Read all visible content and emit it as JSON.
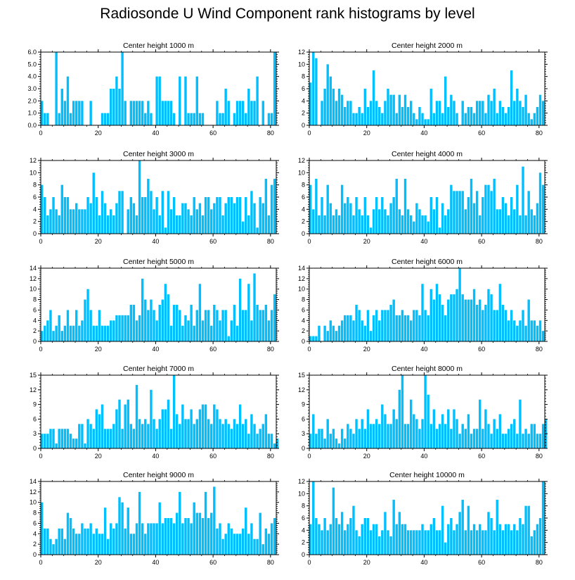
{
  "figure": {
    "title": "Radiosonde U Wind Component rank histograms by level",
    "bar_color": "#00bfff",
    "axis_color": "#000000"
  },
  "chart_data": [
    {
      "type": "bar",
      "title": "Center height 1000 m",
      "x_ticks": [
        0,
        20,
        40,
        60,
        80
      ],
      "y_ticks": [
        "0.0",
        "1.0",
        "2.0",
        "3.0",
        "4.0",
        "5.0",
        "6.0"
      ],
      "ylim": [
        0,
        6
      ],
      "values": [
        2,
        1,
        1,
        0,
        0,
        6,
        1,
        3,
        2,
        4,
        1,
        2,
        2,
        2,
        2,
        0,
        0,
        2,
        0,
        0,
        0,
        1,
        1,
        1,
        3,
        3,
        4,
        3,
        6,
        2,
        0,
        2,
        2,
        2,
        2,
        2,
        1,
        2,
        1,
        0,
        4,
        4,
        2,
        2,
        2,
        2,
        1,
        0,
        4,
        0,
        4,
        1,
        1,
        1,
        4,
        1,
        1,
        0,
        0,
        0,
        0,
        2,
        1,
        1,
        3,
        2,
        0,
        1,
        2,
        2,
        2,
        1,
        3,
        2,
        2,
        4,
        0,
        2,
        0,
        1,
        1,
        6
      ]
    },
    {
      "type": "bar",
      "title": "Center height 2000 m",
      "x_ticks": [
        0,
        20,
        40,
        60,
        80
      ],
      "y_ticks": [
        "0",
        "2",
        "4",
        "6",
        "8",
        "10",
        "12"
      ],
      "ylim": [
        0,
        12
      ],
      "values": [
        7,
        12,
        11,
        0,
        4,
        6,
        10,
        8,
        6,
        4,
        6,
        5,
        3,
        4,
        4,
        2,
        2,
        3,
        2,
        6,
        3,
        4,
        9,
        4,
        3,
        2,
        4,
        6,
        5,
        5,
        2,
        5,
        3,
        5,
        3,
        4,
        2,
        1,
        3,
        2,
        1,
        1,
        6,
        2,
        4,
        4,
        2,
        8,
        3,
        5,
        4,
        2,
        0,
        4,
        2,
        3,
        3,
        2,
        4,
        4,
        4,
        2,
        5,
        4,
        6,
        2,
        4,
        3,
        2,
        3,
        9,
        4,
        6,
        4,
        3,
        5,
        2,
        1,
        2,
        3,
        5,
        4
      ]
    },
    {
      "type": "bar",
      "title": "Center height 3000 m",
      "x_ticks": [
        0,
        20,
        40,
        60,
        80
      ],
      "y_ticks": [
        "0",
        "2",
        "4",
        "6",
        "8",
        "10",
        "12"
      ],
      "ylim": [
        0,
        12
      ],
      "values": [
        8,
        6,
        3,
        4,
        6,
        4,
        3,
        8,
        6,
        6,
        4,
        4,
        5,
        4,
        4,
        4,
        6,
        5,
        10,
        6,
        3,
        7,
        5,
        3,
        4,
        3,
        5,
        7,
        7,
        0,
        4,
        6,
        5,
        3,
        12,
        6,
        6,
        9,
        7,
        4,
        6,
        3,
        7,
        1,
        7,
        4,
        6,
        3,
        3,
        5,
        5,
        4,
        3,
        6,
        4,
        5,
        3,
        6,
        6,
        4,
        5,
        6,
        6,
        3,
        5,
        6,
        6,
        5,
        6,
        6,
        2,
        6,
        3,
        7,
        5,
        1,
        6,
        5,
        9,
        3,
        8,
        9
      ]
    },
    {
      "type": "bar",
      "title": "Center height 4000 m",
      "x_ticks": [
        0,
        20,
        40,
        60,
        80
      ],
      "y_ticks": [
        "0",
        "2",
        "4",
        "6",
        "8",
        "10",
        "12"
      ],
      "ylim": [
        0,
        12
      ],
      "values": [
        8,
        4,
        9,
        3,
        6,
        3,
        8,
        5,
        3,
        4,
        3,
        8,
        5,
        6,
        5,
        3,
        6,
        4,
        3,
        6,
        3,
        1,
        4,
        6,
        4,
        6,
        4,
        3,
        5,
        6,
        9,
        4,
        3,
        9,
        4,
        3,
        2,
        5,
        4,
        3,
        3,
        2,
        6,
        4,
        6,
        1,
        5,
        3,
        4,
        8,
        7,
        7,
        7,
        7,
        4,
        6,
        9,
        5,
        7,
        3,
        6,
        8,
        8,
        7,
        9,
        4,
        4,
        6,
        5,
        3,
        6,
        4,
        8,
        3,
        11,
        3,
        7,
        4,
        3,
        5,
        10,
        8
      ]
    },
    {
      "type": "bar",
      "title": "Center height 5000 m",
      "x_ticks": [
        0,
        20,
        40,
        60,
        80
      ],
      "y_ticks": [
        "0",
        "2",
        "4",
        "6",
        "8",
        "10",
        "12",
        "14"
      ],
      "ylim": [
        0,
        14
      ],
      "values": [
        2,
        3,
        4,
        6,
        2,
        3,
        5,
        2,
        3,
        6,
        3,
        3,
        6,
        3,
        4,
        8,
        10,
        6,
        3,
        3,
        6,
        3,
        3,
        3,
        4,
        4,
        5,
        5,
        5,
        5,
        5,
        7,
        7,
        4,
        5,
        12,
        8,
        6,
        8,
        6,
        4,
        7,
        8,
        11,
        9,
        3,
        7,
        7,
        6,
        3,
        5,
        4,
        7,
        3,
        6,
        11,
        4,
        6,
        6,
        3,
        7,
        6,
        4,
        6,
        6,
        1,
        4,
        7,
        3,
        12,
        6,
        6,
        11,
        4,
        13,
        7,
        6,
        6,
        7,
        4,
        6,
        9
      ]
    },
    {
      "type": "bar",
      "title": "Center height 6000 m",
      "x_ticks": [
        0,
        20,
        40,
        60,
        80
      ],
      "y_ticks": [
        "0",
        "2",
        "4",
        "6",
        "8",
        "10",
        "12",
        "14"
      ],
      "ylim": [
        0,
        14
      ],
      "values": [
        1,
        1,
        1,
        3,
        0,
        3,
        2,
        4,
        3,
        2,
        3,
        4,
        5,
        5,
        5,
        4,
        7,
        6,
        4,
        3,
        6,
        2,
        5,
        6,
        4,
        6,
        6,
        6,
        7,
        8,
        5,
        5,
        6,
        5,
        5,
        4,
        6,
        6,
        5,
        11,
        6,
        5,
        10,
        8,
        11,
        9,
        7,
        5,
        8,
        9,
        9,
        10,
        14,
        9,
        8,
        8,
        8,
        10,
        7,
        8,
        6,
        7,
        10,
        9,
        6,
        6,
        11,
        7,
        6,
        4,
        6,
        4,
        3,
        4,
        6,
        3,
        8,
        4,
        4,
        3,
        4,
        2
      ]
    },
    {
      "type": "bar",
      "title": "Center height 7000 m",
      "x_ticks": [
        0,
        20,
        40,
        60,
        80
      ],
      "y_ticks": [
        "0",
        "3",
        "6",
        "9",
        "12",
        "15"
      ],
      "ylim": [
        0,
        15
      ],
      "values": [
        3,
        3,
        3,
        4,
        4,
        1,
        4,
        4,
        4,
        4,
        3,
        2,
        2,
        5,
        5,
        1,
        6,
        5,
        4,
        8,
        7,
        9,
        4,
        4,
        4,
        5,
        8,
        10,
        4,
        9,
        10,
        5,
        4,
        13,
        6,
        5,
        6,
        5,
        12,
        6,
        4,
        6,
        8,
        8,
        10,
        4,
        15,
        7,
        5,
        9,
        6,
        6,
        8,
        5,
        6,
        8,
        9,
        9,
        6,
        5,
        9,
        8,
        6,
        5,
        6,
        5,
        4,
        6,
        5,
        9,
        5,
        6,
        3,
        7,
        5,
        3,
        4,
        5,
        7,
        3,
        3,
        1,
        2
      ]
    },
    {
      "type": "bar",
      "title": "Center height 8000 m",
      "x_ticks": [
        0,
        20,
        40,
        60,
        80
      ],
      "y_ticks": [
        "0",
        "3",
        "6",
        "9",
        "12",
        "15"
      ],
      "ylim": [
        0,
        15
      ],
      "values": [
        3,
        7,
        3,
        4,
        4,
        2,
        6,
        3,
        4,
        2,
        1,
        4,
        2,
        5,
        4,
        3,
        6,
        4,
        6,
        4,
        8,
        5,
        5,
        6,
        5,
        9,
        7,
        5,
        5,
        8,
        6,
        12,
        15,
        5,
        5,
        10,
        7,
        6,
        4,
        6,
        15,
        11,
        5,
        8,
        4,
        5,
        7,
        5,
        8,
        4,
        8,
        6,
        3,
        5,
        4,
        7,
        3,
        4,
        4,
        10,
        4,
        8,
        5,
        3,
        6,
        4,
        7,
        3,
        3,
        4,
        5,
        6,
        3,
        10,
        3,
        4,
        3,
        5,
        5,
        3,
        3,
        5,
        6
      ]
    },
    {
      "type": "bar",
      "title": "Center height 9000 m",
      "x_ticks": [
        0,
        20,
        40,
        60,
        80
      ],
      "y_ticks": [
        "0",
        "2",
        "4",
        "6",
        "8",
        "10",
        "12",
        "14"
      ],
      "ylim": [
        0,
        14
      ],
      "values": [
        10,
        5,
        5,
        3,
        2,
        3,
        5,
        5,
        3,
        8,
        7,
        5,
        4,
        4,
        6,
        5,
        5,
        6,
        4,
        5,
        4,
        4,
        9,
        3,
        6,
        5,
        6,
        11,
        10,
        5,
        9,
        4,
        4,
        6,
        12,
        6,
        4,
        6,
        6,
        6,
        6,
        10,
        6,
        7,
        7,
        7,
        6,
        8,
        12,
        6,
        7,
        7,
        6,
        10,
        8,
        8,
        7,
        12,
        7,
        8,
        13,
        5,
        6,
        3,
        4,
        6,
        5,
        4,
        4,
        4,
        5,
        9,
        4,
        6,
        3,
        3,
        8,
        2,
        5,
        4,
        6,
        7
      ]
    },
    {
      "type": "bar",
      "title": "Center height 10000 m",
      "x_ticks": [
        0,
        20,
        40,
        60,
        80
      ],
      "y_ticks": [
        "0",
        "2",
        "4",
        "6",
        "8",
        "10",
        "12"
      ],
      "ylim": [
        0,
        12
      ],
      "values": [
        5,
        12,
        6,
        5,
        4,
        6,
        4,
        5,
        11,
        6,
        5,
        7,
        4,
        5,
        6,
        8,
        4,
        3,
        5,
        6,
        6,
        4,
        5,
        5,
        3,
        4,
        7,
        4,
        3,
        9,
        5,
        7,
        5,
        5,
        4,
        4,
        4,
        4,
        4,
        5,
        4,
        4,
        5,
        6,
        4,
        4,
        8,
        2,
        5,
        6,
        4,
        5,
        7,
        9,
        4,
        8,
        4,
        5,
        4,
        5,
        4,
        4,
        7,
        6,
        4,
        9,
        5,
        4,
        5,
        5,
        4,
        5,
        4,
        6,
        5,
        8,
        8,
        3,
        4,
        5,
        6,
        12
      ]
    }
  ]
}
